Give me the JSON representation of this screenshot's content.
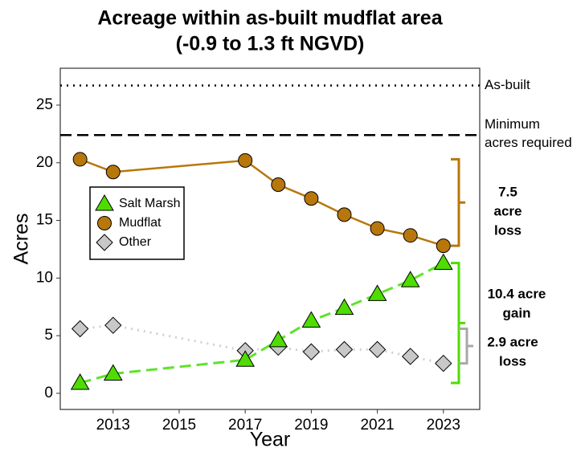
{
  "chart_data": {
    "type": "line",
    "title": [
      "Acreage within as-built mudflat area",
      "(-0.9 to 1.3 ft NGVD)"
    ],
    "x_label": "Year",
    "y_label": "Acres",
    "x": [
      2012,
      2013,
      2017,
      2018,
      2019,
      2020,
      2021,
      2022,
      2023
    ],
    "series": [
      {
        "name": "Salt Marsh",
        "color": "#4fdc00",
        "line_color": "#5ee32a",
        "marker": "triangle",
        "dash": "dashed",
        "values": [
          0.9,
          1.7,
          2.9,
          4.6,
          6.3,
          7.4,
          8.6,
          9.8,
          11.3
        ]
      },
      {
        "name": "Mudflat",
        "color": "#b8770b",
        "line_color": "#b8770b",
        "marker": "circle",
        "dash": "solid",
        "values": [
          20.3,
          19.2,
          20.2,
          18.1,
          16.9,
          15.5,
          14.3,
          13.7,
          12.8
        ]
      },
      {
        "name": "Other",
        "color": "#c8c8c8",
        "line_color": "#d0d0d0",
        "marker": "diamond",
        "dash": "dotted",
        "values": [
          5.6,
          5.9,
          3.7,
          4.0,
          3.6,
          3.8,
          3.8,
          3.2,
          2.6
        ]
      }
    ],
    "xlim": [
      2011.4,
      2024.1
    ],
    "ylim": [
      -1.4,
      28.2
    ],
    "xticks": [
      2013,
      2015,
      2017,
      2019,
      2021,
      2023
    ],
    "yticks": [
      0,
      5,
      10,
      15,
      20,
      25
    ],
    "reference_lines": [
      {
        "value": 26.7,
        "label": [
          "As-built"
        ],
        "dash": "dotted"
      },
      {
        "value": 22.4,
        "label": [
          "Minimum",
          "acres required"
        ],
        "dash": "dashed"
      }
    ],
    "annotations": [
      {
        "lines": [
          "7.5",
          "acre",
          "loss"
        ],
        "color": "#b8770b"
      },
      {
        "lines": [
          "10.4 acre",
          "gain"
        ],
        "color": "#4fdc00"
      },
      {
        "lines": [
          "2.9 acre",
          "loss"
        ],
        "color": "#a8a8a8"
      }
    ],
    "legend_position": "upper-left"
  }
}
